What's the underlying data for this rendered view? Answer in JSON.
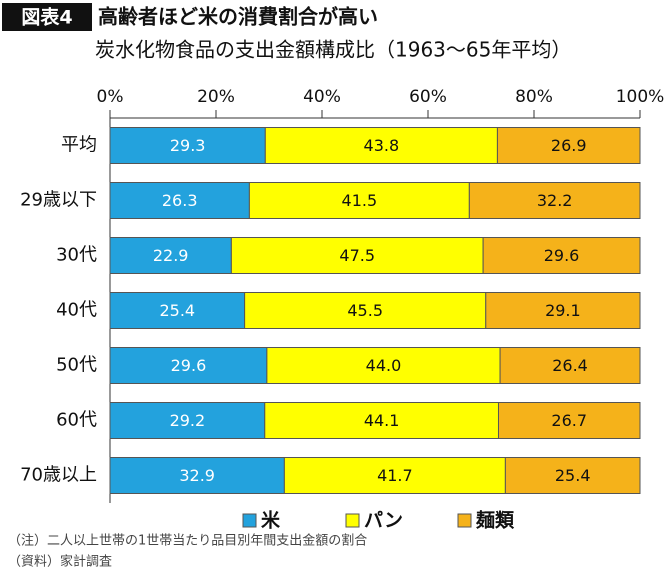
{
  "chart_data": {
    "type": "stacked-barh",
    "figure_label": "図表4",
    "title": "高齢者ほど米の消費割合が高い",
    "subtitle": "炭水化物食品の支出金額構成比（1963〜65年平均）",
    "categories": [
      "平均",
      "29歳以下",
      "30代",
      "40代",
      "50代",
      "60代",
      "70歳以上"
    ],
    "series": [
      {
        "name": "米",
        "color": "#23a2dd",
        "values": [
          29.3,
          26.3,
          22.9,
          25.4,
          29.6,
          29.2,
          32.9
        ]
      },
      {
        "name": "パン",
        "color": "#ffff00",
        "values": [
          43.8,
          41.5,
          47.5,
          45.5,
          44.0,
          44.1,
          41.7
        ],
        "value_labels": [
          "43.8",
          "41.5",
          "47.5",
          "45.5",
          "44.0",
          "44.1",
          "41.7"
        ]
      },
      {
        "name": "麺類",
        "color": "#f5b21a",
        "values": [
          26.9,
          32.2,
          29.6,
          29.1,
          26.4,
          26.7,
          25.4
        ]
      }
    ],
    "xlim": [
      0,
      100
    ],
    "xticks": [
      {
        "value": 0,
        "label": "0%"
      },
      {
        "value": 20,
        "label": "20%"
      },
      {
        "value": 40,
        "label": "40%"
      },
      {
        "value": 60,
        "label": "60%"
      },
      {
        "value": 80,
        "label": "80%"
      },
      {
        "value": 100,
        "label": "100%"
      }
    ],
    "notes": [
      "（注）二人以上世帯の1世帯当たり品目別年間支出金額の割合",
      "（資料）家計調査"
    ]
  }
}
